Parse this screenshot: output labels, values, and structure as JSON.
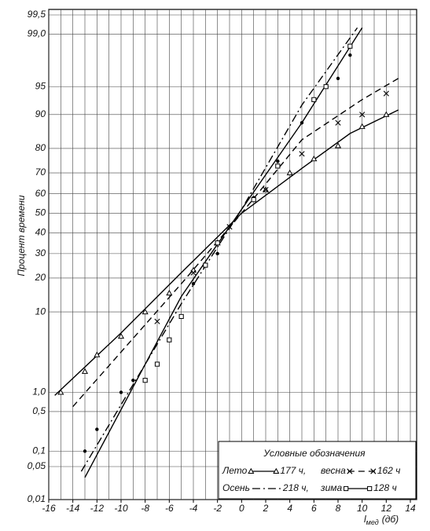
{
  "chart_data": {
    "type": "probability-line",
    "y_label": "Процент времени",
    "x_label": {
      "symbol": "l",
      "subscript": "мед",
      "unit": "(дб)"
    },
    "xlim": [
      -16,
      14
    ],
    "xticks": [
      -16,
      -14,
      -12,
      -10,
      -8,
      -6,
      -4,
      -2,
      0,
      2,
      4,
      6,
      8,
      10,
      12,
      14
    ],
    "ylim": [
      0.01,
      99.5
    ],
    "yscale": "probit",
    "yticks": [
      {
        "value": 99.5,
        "label": "99,5"
      },
      {
        "value": 99,
        "label": "99,0"
      },
      95,
      90,
      80,
      70,
      60,
      50,
      40,
      30,
      20,
      10,
      {
        "value": 1,
        "label": "1,0"
      },
      {
        "value": 0.5,
        "label": "0,5"
      },
      {
        "value": 0.1,
        "label": "0,1"
      },
      {
        "value": 0.05,
        "label": "0,05"
      },
      {
        "value": 0.01,
        "label": "0,01"
      }
    ],
    "grid": true,
    "legend_title": "Условные обозначения",
    "legend_position": "lower right",
    "series": [
      {
        "name": "Лето",
        "hours": "177 ч,",
        "color": "#000000",
        "dash": "solid",
        "marker": "triangle",
        "x": [
          -15.5,
          -10,
          -5,
          0,
          5,
          9,
          13
        ],
        "values": [
          0.9,
          6,
          22,
          50,
          72,
          85,
          91
        ],
        "points": {
          "x": [
            -15,
            -13,
            -12,
            -10,
            -8,
            -6,
            -4,
            -2,
            2,
            4,
            6,
            8,
            10,
            12
          ],
          "values": [
            1,
            2,
            3.3,
            5.5,
            10,
            15,
            23,
            35,
            62,
            70,
            76,
            81,
            87,
            90
          ]
        }
      },
      {
        "name": "весна",
        "hours": "162 ч",
        "color": "#000000",
        "dash": "dashed",
        "marker": "cross",
        "x": [
          -14,
          -5,
          0,
          5,
          10,
          13
        ],
        "values": [
          0.6,
          18,
          50,
          83,
          93,
          96
        ],
        "points": {
          "x": [
            -7,
            -4,
            -1,
            2,
            5,
            8,
            10,
            12
          ],
          "values": [
            8,
            22,
            43,
            62,
            78,
            88,
            90,
            94
          ]
        }
      },
      {
        "name": "Осень",
        "hours": "218 ч,",
        "color": "#000000",
        "dash": "dashdot",
        "marker": "dot",
        "x": [
          -13.3,
          -5,
          0,
          5,
          9.6
        ],
        "values": [
          0.04,
          12,
          52,
          92,
          99.2
        ],
        "points": {
          "x": [
            -13,
            -12,
            -10,
            -9,
            -4,
            -2,
            1,
            3,
            5,
            8,
            9
          ],
          "values": [
            0.1,
            0.25,
            1,
            1.5,
            18,
            30,
            58,
            75,
            88,
            96,
            98
          ]
        }
      },
      {
        "name": "зима",
        "hours": "128 ч",
        "color": "#000000",
        "dash": "solid",
        "marker": "square",
        "x": [
          -13,
          -5,
          0,
          5,
          10
        ],
        "values": [
          0.03,
          14,
          52,
          88,
          99.2
        ],
        "points": {
          "x": [
            -8,
            -7,
            -6,
            -5,
            -3,
            -2,
            1,
            3,
            6,
            7,
            9
          ],
          "values": [
            1.5,
            2.5,
            5,
            9,
            25,
            35,
            57,
            73,
            93,
            95,
            98.5
          ]
        }
      }
    ]
  }
}
